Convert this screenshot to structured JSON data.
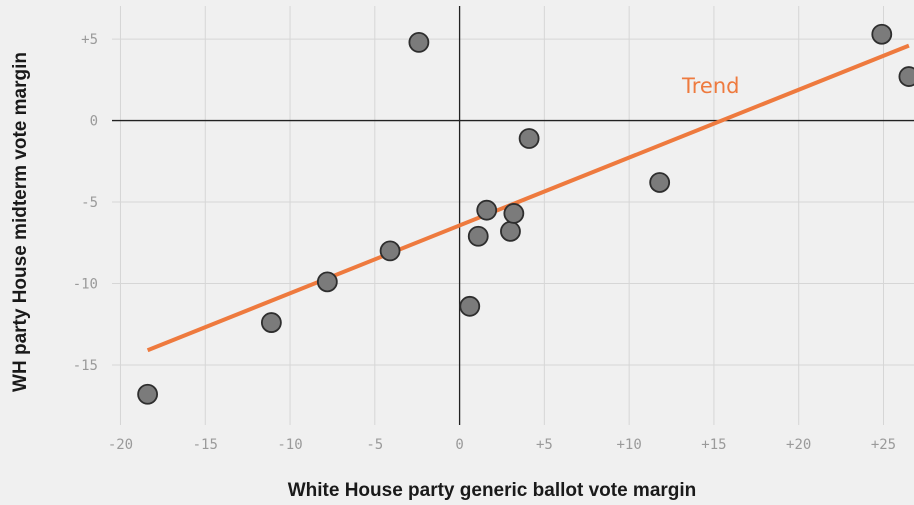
{
  "chart_data": {
    "type": "scatter",
    "title": "",
    "xlabel": "White House party generic ballot vote margin",
    "ylabel": "WH party House midterm vote margin",
    "xlim": [
      -20.5,
      26.8
    ],
    "ylim": [
      -19.3,
      7.4
    ],
    "grid": true,
    "x_ticks": [
      -20,
      -15,
      -10,
      -5,
      0,
      5,
      10,
      15,
      20,
      25
    ],
    "x_tick_labels": [
      "-20",
      "-15",
      "-10",
      "-5",
      "0",
      "+5",
      "+10",
      "+15",
      "+20",
      "+25"
    ],
    "y_ticks": [
      5,
      0,
      -5,
      -10,
      -15
    ],
    "y_tick_labels": [
      "+5",
      "0",
      "-5",
      "-10",
      "-15"
    ],
    "points": [
      {
        "x": -18.4,
        "y": -16.8
      },
      {
        "x": -11.1,
        "y": -12.4
      },
      {
        "x": -7.8,
        "y": -9.9
      },
      {
        "x": -4.1,
        "y": -8.0
      },
      {
        "x": -2.4,
        "y": 4.8
      },
      {
        "x": 0.6,
        "y": -11.4
      },
      {
        "x": 1.1,
        "y": -7.1
      },
      {
        "x": 1.6,
        "y": -5.5
      },
      {
        "x": 3.0,
        "y": -6.8
      },
      {
        "x": 3.2,
        "y": -5.7
      },
      {
        "x": 4.1,
        "y": -1.1
      },
      {
        "x": 11.8,
        "y": -3.8
      },
      {
        "x": 24.9,
        "y": 5.3
      },
      {
        "x": 26.5,
        "y": 2.7
      }
    ],
    "trend": {
      "label": "Trend",
      "x": [
        -18.4,
        26.5
      ],
      "y": [
        -14.1,
        4.6
      ],
      "color": "#ee7a3e"
    },
    "colors": {
      "point_fill": "#7b7b7b",
      "point_stroke": "#2e2e2e",
      "grid": "#d6d6d6",
      "zero_line": "#222222"
    }
  }
}
